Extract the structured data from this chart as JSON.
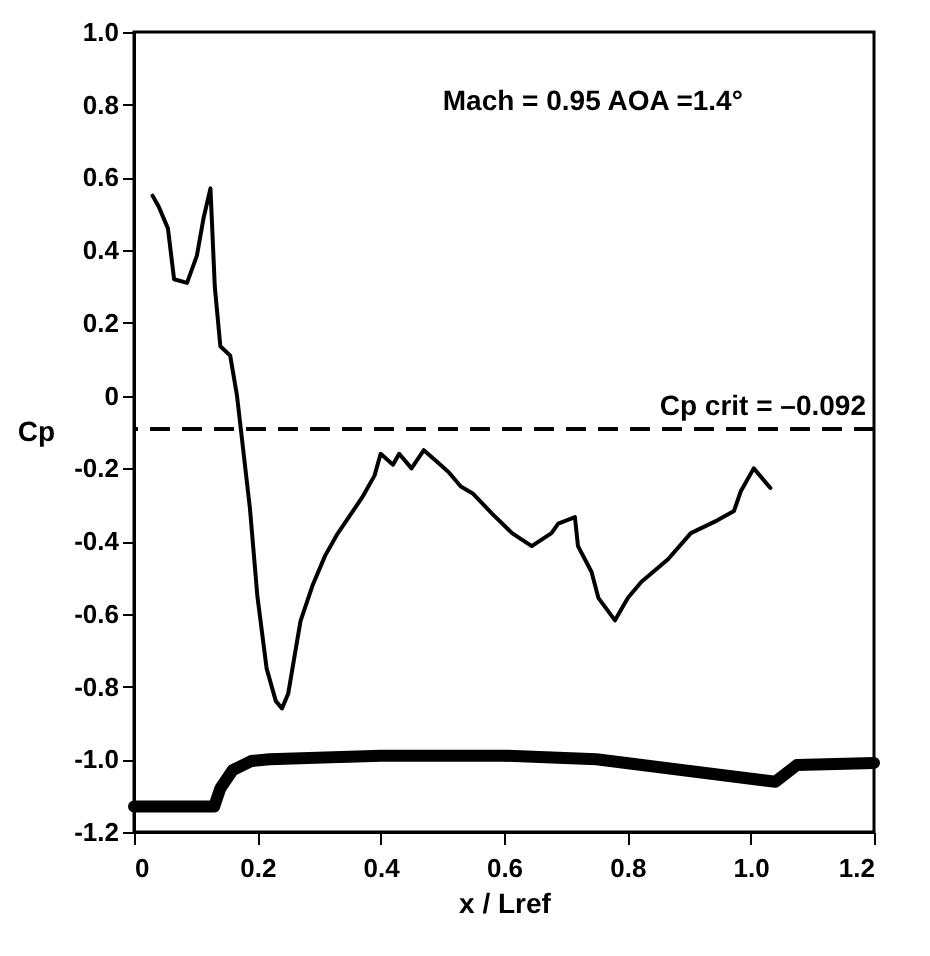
{
  "chart_data": {
    "type": "line",
    "xlabel": "x / Lref",
    "ylabel": "Cp",
    "annotations": [
      "Mach = 0.95     AOA =1.4°"
    ],
    "xlim": [
      0,
      1.2
    ],
    "xticks": [
      {
        "value": 0,
        "label": "0"
      },
      0.2,
      0.4,
      0.6,
      0.8,
      {
        "value": 1,
        "label": "1.0"
      },
      1.2
    ],
    "ylim": [
      -1.2,
      1
    ],
    "yticks": [
      -1.2,
      {
        "value": -1,
        "label": "-1.0"
      },
      -0.8,
      -0.6,
      -0.4,
      -0.2,
      0,
      0.2,
      0.4,
      0.6,
      0.8,
      {
        "value": 1,
        "label": "1.0"
      }
    ],
    "series": [
      {
        "color": "#000000",
        "x": [
          0.03,
          0.04,
          0.055,
          0.065,
          0.086,
          0.102,
          0.113,
          0.124,
          0.131,
          0.14,
          0.156,
          0.167,
          0.188,
          0.2,
          0.215,
          0.23,
          0.24,
          0.25,
          0.26,
          0.27,
          0.29,
          0.31,
          0.33,
          0.35,
          0.37,
          0.39,
          0.4,
          0.42,
          0.43,
          0.45,
          0.47,
          0.49,
          0.51,
          0.53,
          0.55,
          0.581,
          0.613,
          0.645,
          0.677,
          0.688,
          0.715,
          0.72,
          0.742,
          0.753,
          0.78,
          0.801,
          0.823,
          0.866,
          0.903,
          0.946,
          0.973,
          0.984,
          1.005,
          1.032
        ],
        "values": [
          0.55,
          0.52,
          0.46,
          0.32,
          0.31,
          0.385,
          0.49,
          0.57,
          0.3,
          0.136,
          0.11,
          0,
          -0.31,
          -0.55,
          -0.75,
          -0.84,
          -0.86,
          -0.82,
          -0.72,
          -0.62,
          -0.52,
          -0.44,
          -0.38,
          -0.33,
          -0.28,
          -0.22,
          -0.16,
          -0.19,
          -0.16,
          -0.2,
          -0.15,
          -0.18,
          -0.21,
          -0.25,
          -0.27,
          -0.325,
          -0.378,
          -0.414,
          -0.378,
          -0.352,
          -0.334,
          -0.414,
          -0.485,
          -0.556,
          -0.618,
          -0.556,
          -0.512,
          -0.45,
          -0.378,
          -0.343,
          -0.317,
          -0.263,
          -0.2,
          -0.254
        ]
      },
      {
        "color": "#000000",
        "x": [
          0,
          0.13,
          0.14,
          0.16,
          0.19,
          0.22,
          0.4,
          0.6,
          0.75,
          1.04,
          1.075,
          1.2
        ],
        "values": [
          -1.13,
          -1.13,
          -1.08,
          -1.03,
          -1.005,
          -1.0,
          -0.99,
          -0.99,
          -1.0,
          -1.062,
          -1.016,
          -1.01
        ]
      }
    ],
    "ref_lines": [
      {
        "axis": "y",
        "value": -0.092,
        "label": "Cp crit = –0.092",
        "color": "#000000",
        "line_style": "dashed"
      }
    ]
  }
}
